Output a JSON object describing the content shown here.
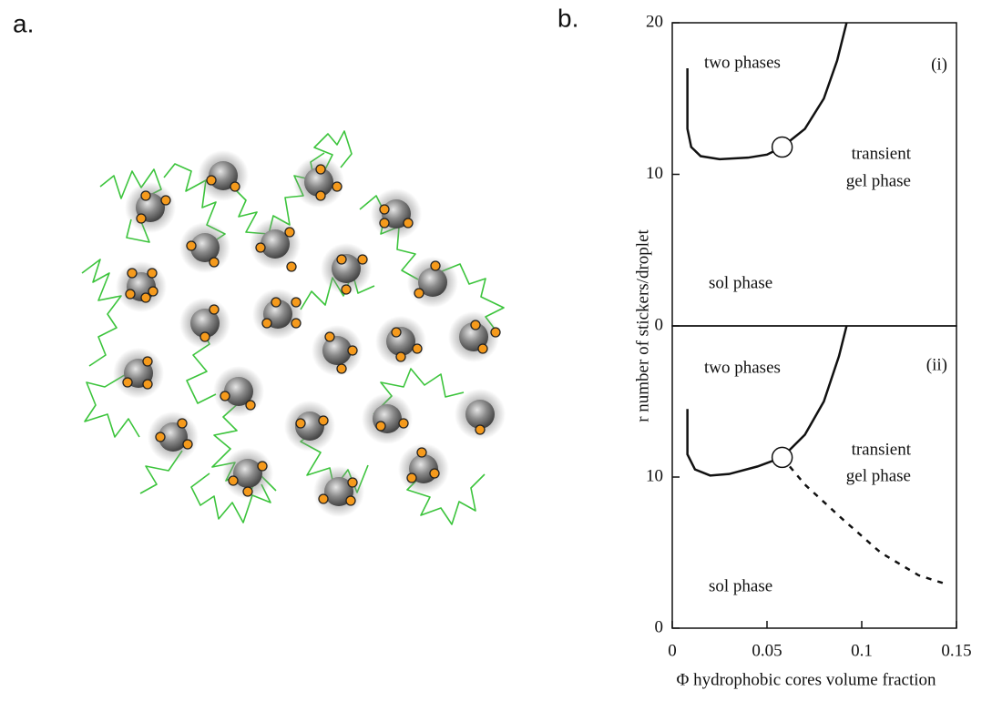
{
  "panel_labels": [
    "a.",
    "b."
  ],
  "chart_data": [
    {
      "type": "line",
      "ylabel": "r number of stickers/droplet",
      "annotations": [
        "two phases",
        "(i)",
        "transient",
        "gel phase",
        "sol phase"
      ],
      "xlim": [
        0,
        0.15
      ],
      "ylim": [
        0,
        20
      ],
      "yticks": [
        0,
        10,
        20
      ],
      "series": [
        {
          "color": "#111111",
          "dashed": false,
          "x": [
            0.008,
            0.008,
            0.01,
            0.015,
            0.025,
            0.04,
            0.05,
            0.058,
            0.07,
            0.08,
            0.087,
            0.092
          ],
          "values": [
            17,
            13,
            11.8,
            11.2,
            11.0,
            11.1,
            11.3,
            11.8,
            13,
            15,
            17.5,
            20
          ]
        }
      ],
      "critical_point": {
        "x": 0.058,
        "y": 11.8
      }
    },
    {
      "type": "line",
      "xlabel": "Φ hydrophobic cores volume fraction",
      "annotations": [
        "two phases",
        "(ii)",
        "transient",
        "gel phase",
        "sol phase"
      ],
      "xlim": [
        0,
        0.15
      ],
      "ylim": [
        0,
        20
      ],
      "yticks": [
        0,
        10
      ],
      "xticks": [
        0,
        0.05,
        0.1,
        0.15
      ],
      "series": [
        {
          "color": "#111111",
          "dashed": false,
          "x": [
            0.008,
            0.008,
            0.012,
            0.02,
            0.03,
            0.045,
            0.058,
            0.07,
            0.08,
            0.088,
            0.092
          ],
          "values": [
            14.5,
            11.5,
            10.5,
            10.1,
            10.2,
            10.7,
            11.3,
            12.8,
            15,
            18,
            20
          ]
        },
        {
          "color": "#111111",
          "dashed": true,
          "x": [
            0.058,
            0.07,
            0.09,
            0.11,
            0.13,
            0.145
          ],
          "values": [
            11.3,
            9.5,
            7.2,
            5,
            3.5,
            2.9
          ]
        }
      ],
      "critical_point": {
        "x": 0.058,
        "y": 11.3
      }
    }
  ]
}
